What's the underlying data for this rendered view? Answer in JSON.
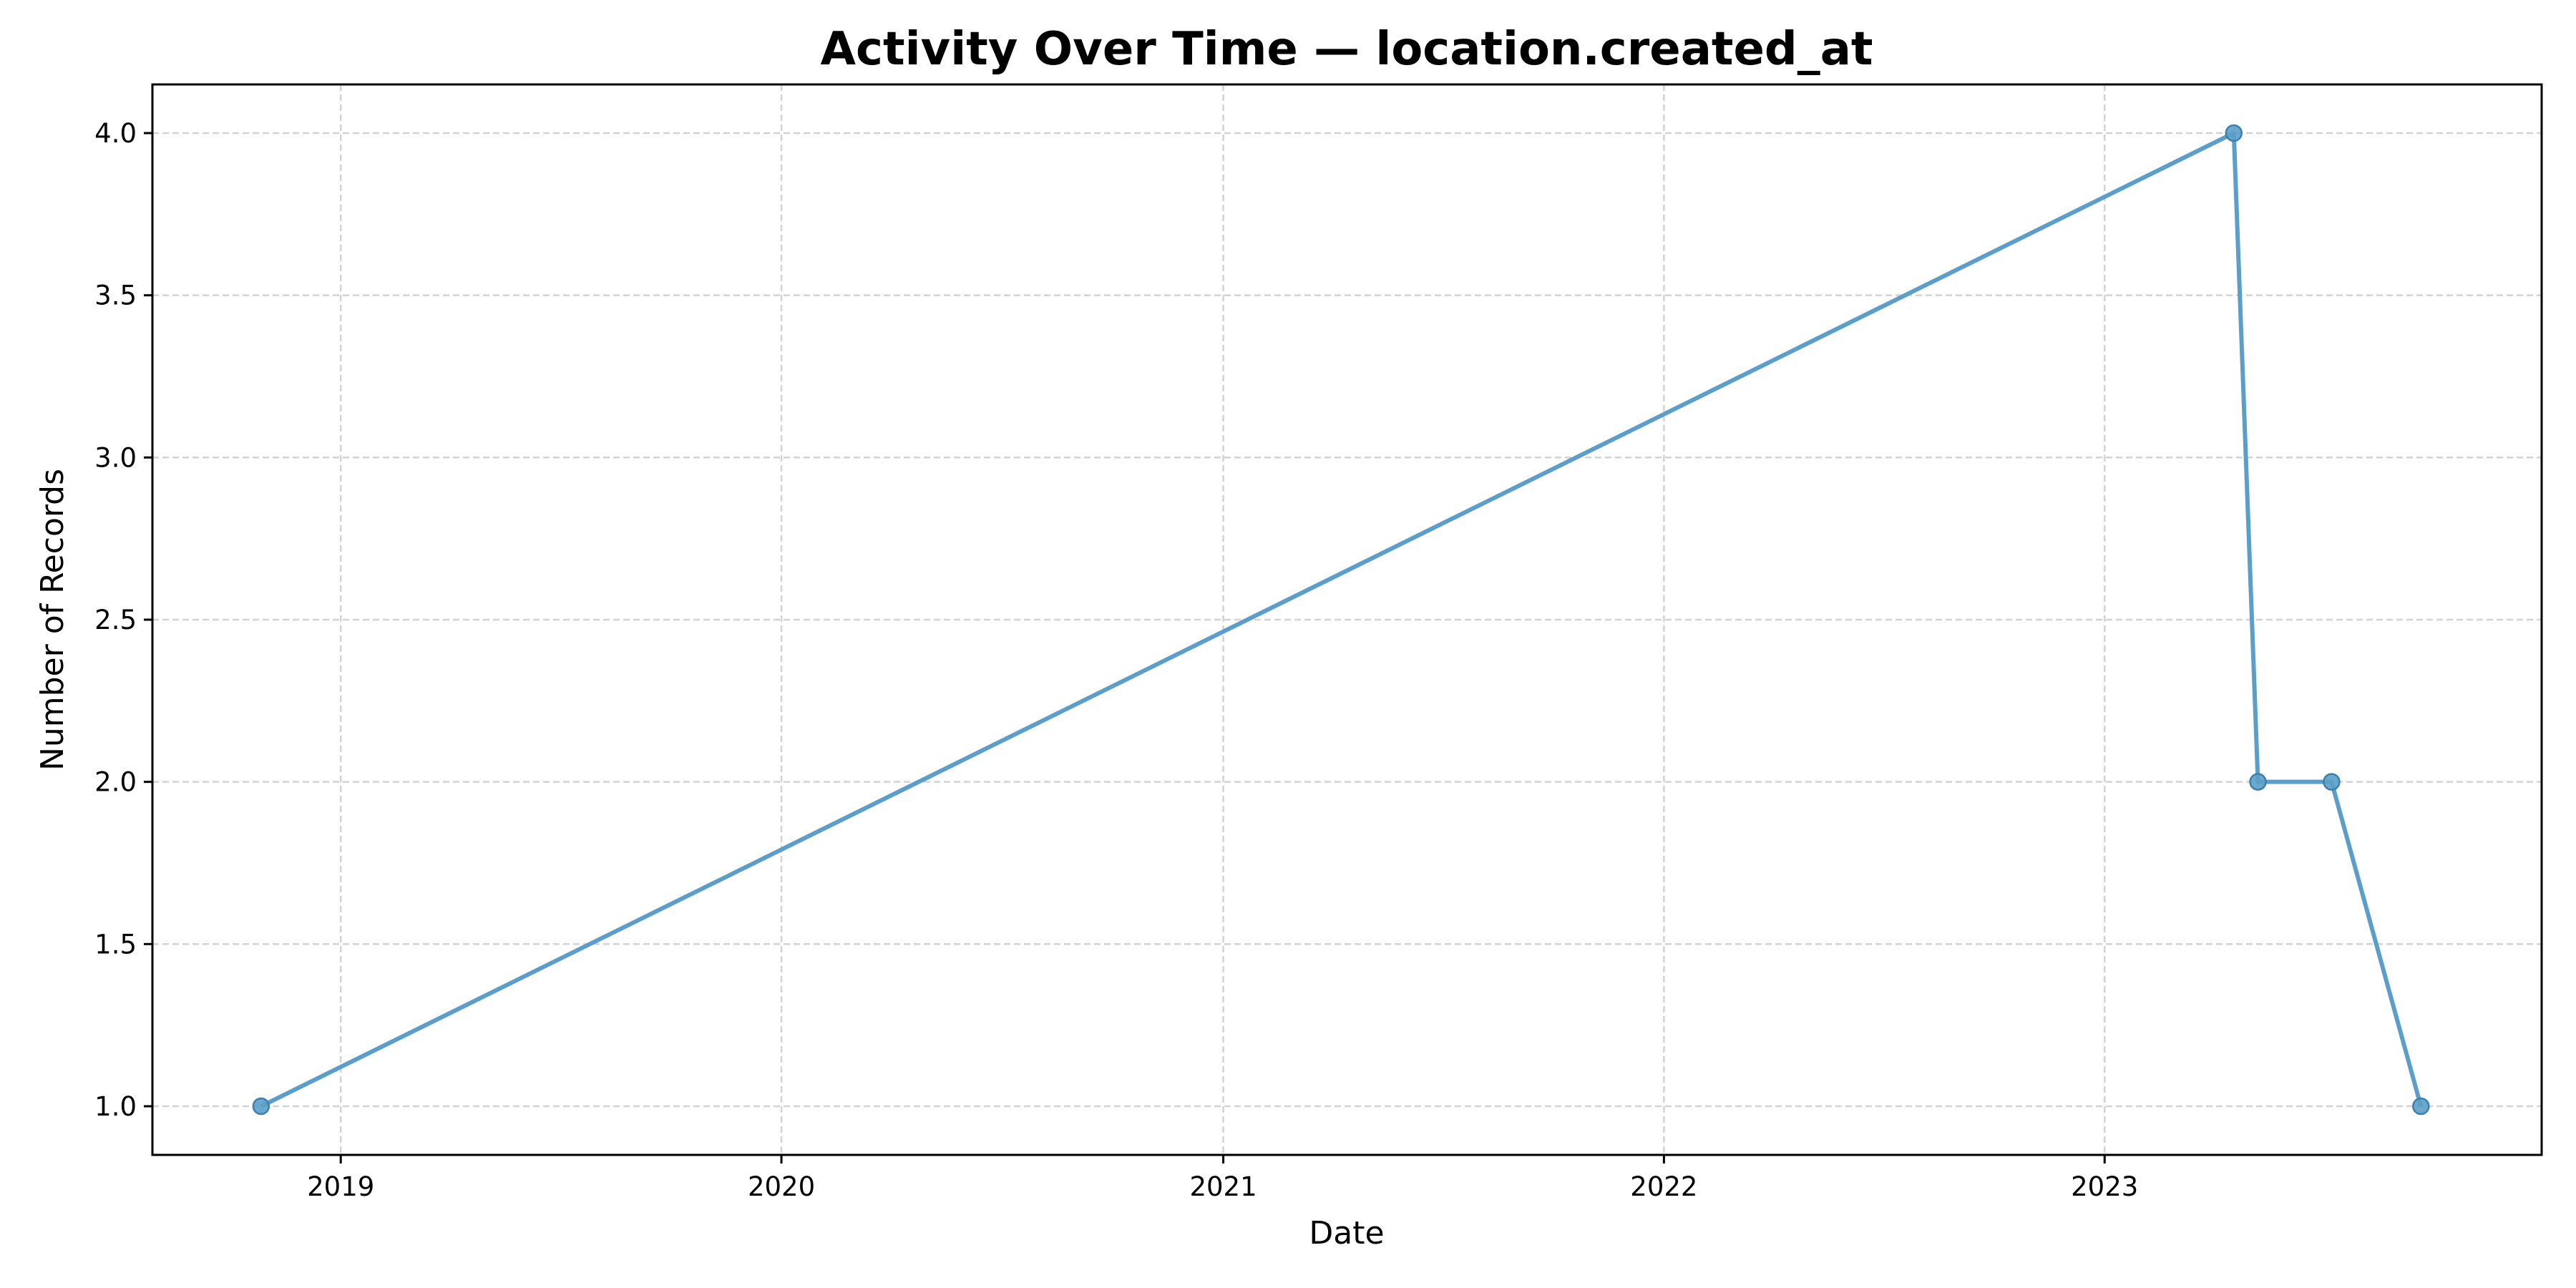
{
  "chart_data": {
    "type": "line",
    "title": "Activity Over Time — location.created_at",
    "xlabel": "Date",
    "ylabel": "Number of Records",
    "x_ticks": [
      "2019",
      "2020",
      "2021",
      "2022",
      "2023"
    ],
    "y_ticks": [
      "1.0",
      "1.5",
      "2.0",
      "2.5",
      "3.0",
      "3.5",
      "4.0"
    ],
    "xlim": [
      "2018-07-29",
      "2023-12-29"
    ],
    "ylim": [
      0.85,
      4.15
    ],
    "grid": true,
    "series": [
      {
        "color": "#5b9ec9",
        "points": [
          {
            "x": "2018-10-27",
            "y": 1
          },
          {
            "x": "2023-04-18",
            "y": 4
          },
          {
            "x": "2023-05-08",
            "y": 2
          },
          {
            "x": "2023-07-08",
            "y": 2
          },
          {
            "x": "2023-09-20",
            "y": 1
          }
        ]
      }
    ]
  }
}
